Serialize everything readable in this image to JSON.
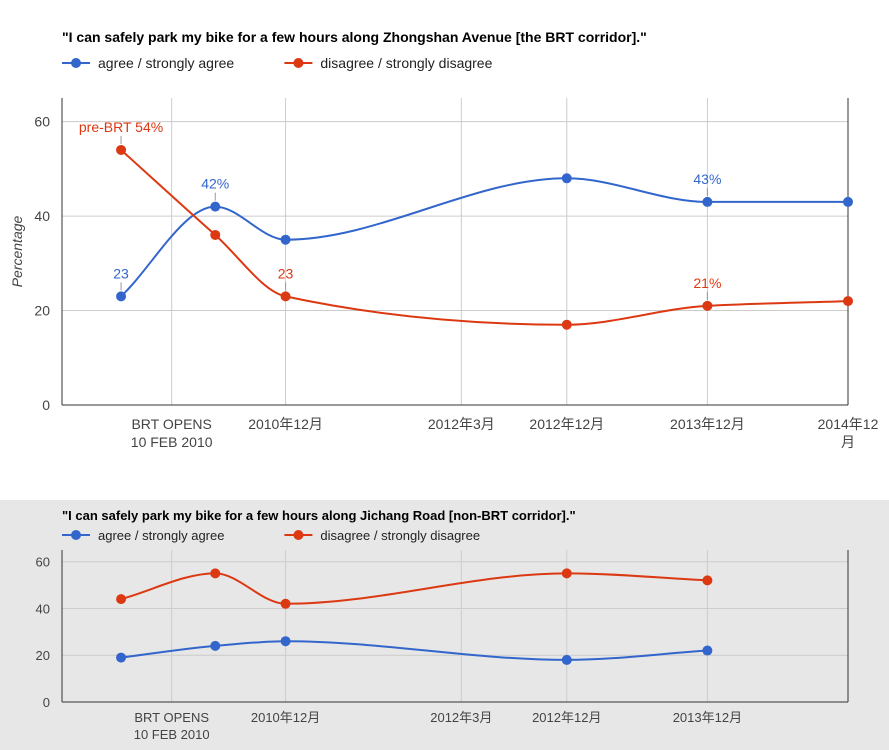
{
  "chart_data": [
    {
      "type": "line",
      "title": "\"I can safely park my bike for a few hours along Zhongshan Avenue [the BRT corridor].\"",
      "ylabel": "Percentage",
      "ylim": [
        0,
        65
      ],
      "yticks": [
        0,
        20,
        40,
        60
      ],
      "grid": true,
      "legend_position": "top",
      "x_ticks": [
        {
          "x": 2010.11,
          "lines": [
            "BRT OPENS",
            "10 FEB 2010"
          ]
        },
        {
          "x": 2010.92,
          "lines": [
            "2010年12月"
          ]
        },
        {
          "x": 2012.17,
          "lines": [
            "2012年3月"
          ]
        },
        {
          "x": 2012.92,
          "lines": [
            "2012年12月"
          ]
        },
        {
          "x": 2013.92,
          "lines": [
            "2013年12月"
          ]
        },
        {
          "x": 2014.92,
          "lines": [
            "2014年12",
            "月"
          ]
        }
      ],
      "xlim": [
        2009.33,
        2014.92
      ],
      "series": [
        {
          "name": "agree / strongly agree",
          "color": "#3366cc",
          "x": [
            2009.75,
            2010.42,
            2010.92,
            2012.92,
            2013.92,
            2014.92
          ],
          "values": [
            23,
            42,
            35,
            48,
            43,
            43
          ],
          "annotations": [
            {
              "index": 0,
              "text": "23"
            },
            {
              "index": 1,
              "text": "42%"
            },
            {
              "index": 4,
              "text": "43%"
            }
          ]
        },
        {
          "name": "disagree / strongly disagree",
          "color": "#dc3912",
          "x": [
            2009.75,
            2010.42,
            2010.92,
            2012.92,
            2013.92,
            2014.92
          ],
          "values": [
            54,
            36,
            23,
            17,
            21,
            22
          ],
          "annotations": [
            {
              "index": 0,
              "text": "pre-BRT 54%"
            },
            {
              "index": 2,
              "text": "23"
            },
            {
              "index": 4,
              "text": "21%"
            }
          ]
        }
      ]
    },
    {
      "type": "line",
      "title": "\"I can safely park my bike for a few hours along Jichang Road [non-BRT corridor].\"",
      "ylabel": "",
      "ylim": [
        0,
        65
      ],
      "yticks": [
        0,
        20,
        40,
        60
      ],
      "grid": true,
      "legend_position": "top",
      "x_ticks": [
        {
          "x": 2010.11,
          "lines": [
            "BRT OPENS",
            "10 FEB 2010"
          ]
        },
        {
          "x": 2010.92,
          "lines": [
            "2010年12月"
          ]
        },
        {
          "x": 2012.17,
          "lines": [
            "2012年3月"
          ]
        },
        {
          "x": 2012.92,
          "lines": [
            "2012年12月"
          ]
        },
        {
          "x": 2013.92,
          "lines": [
            "2013年12月"
          ]
        }
      ],
      "xlim": [
        2009.33,
        2014.92
      ],
      "series": [
        {
          "name": "agree / strongly agree",
          "color": "#3366cc",
          "x": [
            2009.75,
            2010.42,
            2010.92,
            2012.92,
            2013.92
          ],
          "values": [
            19,
            24,
            26,
            18,
            22
          ],
          "annotations": []
        },
        {
          "name": "disagree / strongly disagree",
          "color": "#dc3912",
          "x": [
            2009.75,
            2010.42,
            2010.92,
            2012.92,
            2013.92
          ],
          "values": [
            44,
            55,
            42,
            55,
            52
          ],
          "annotations": []
        }
      ]
    }
  ]
}
